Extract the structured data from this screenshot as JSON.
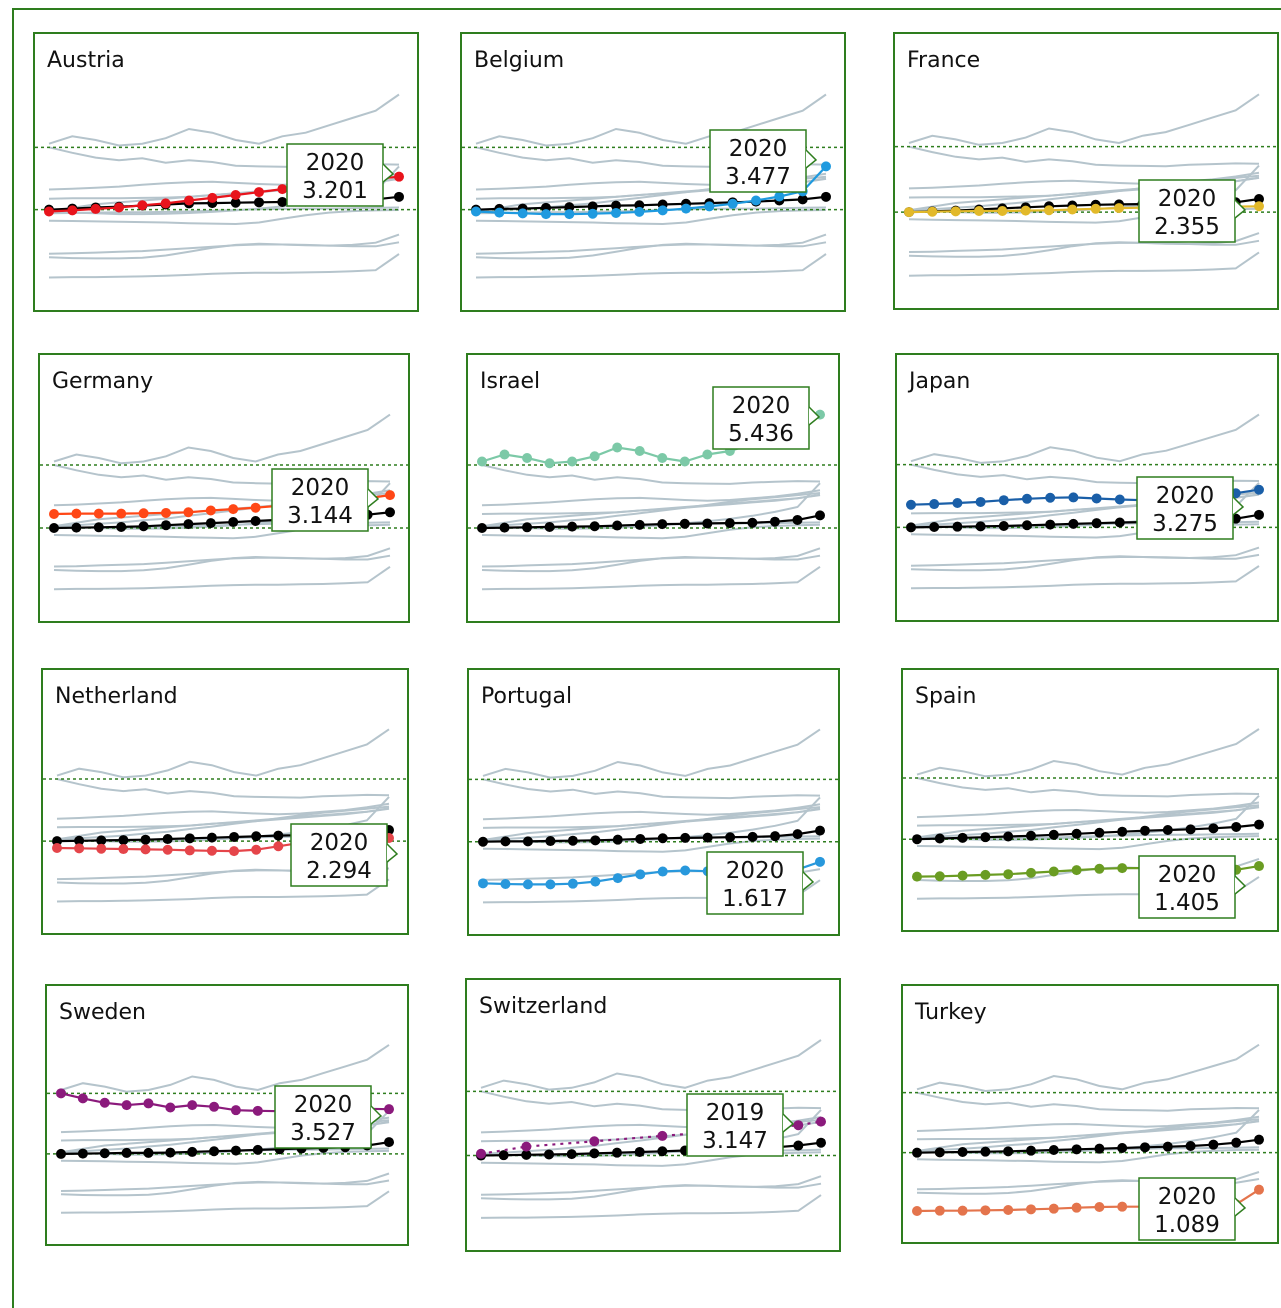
{
  "colors": {
    "frame": "#2e7d1e",
    "reference_line": "#2e7d1e",
    "background_lines": "#b5c4cc",
    "black_series": "#000000"
  },
  "chart_data": [
    {
      "type": "line",
      "title": "Austria",
      "color": "#e8141c",
      "series": [
        {
          "values": [
            2.25,
            2.28,
            2.32,
            2.36,
            2.42,
            2.47,
            2.55,
            2.62,
            2.7,
            2.78,
            2.86,
            2.95,
            3.02,
            3.08,
            3.14,
            3.2
          ]
        },
        {
          "values": [
            2.3,
            2.33,
            2.36,
            2.38,
            2.41,
            2.44,
            2.47,
            2.48,
            2.49,
            2.5,
            2.51,
            2.52,
            2.54,
            2.56,
            2.58,
            2.65
          ]
        }
      ],
      "callout": {
        "year": "2020",
        "value": "3.201"
      }
    },
    {
      "type": "line",
      "title": "Belgium",
      "color": "#1f9adf",
      "series": [
        {
          "values": [
            2.25,
            2.22,
            2.2,
            2.18,
            2.18,
            2.19,
            2.21,
            2.24,
            2.28,
            2.33,
            2.39,
            2.46,
            2.55,
            2.66,
            2.8,
            3.48
          ]
        },
        {
          "values": [
            2.3,
            2.32,
            2.33,
            2.35,
            2.37,
            2.39,
            2.41,
            2.42,
            2.44,
            2.46,
            2.48,
            2.5,
            2.52,
            2.55,
            2.58,
            2.65
          ]
        }
      ],
      "callout": {
        "year": "2020",
        "value": "3.477"
      }
    },
    {
      "type": "line",
      "title": "France",
      "color": "#e2b92a",
      "series": [
        {
          "values": [
            2.2,
            2.21,
            2.22,
            2.23,
            2.23,
            2.24,
            2.25,
            2.27,
            2.29,
            2.31,
            2.32,
            2.33,
            2.33,
            2.34,
            2.35,
            2.36
          ]
        },
        {
          "values": [
            2.2,
            2.22,
            2.24,
            2.27,
            2.3,
            2.33,
            2.36,
            2.38,
            2.4,
            2.41,
            2.42,
            2.43,
            2.44,
            2.45,
            2.47,
            2.56
          ]
        }
      ],
      "callout": {
        "year": "2020",
        "value": "2.355"
      }
    },
    {
      "type": "line",
      "title": "Germany",
      "color": "#ff4716",
      "series": [
        {
          "values": [
            2.6,
            2.61,
            2.61,
            2.61,
            2.62,
            2.63,
            2.65,
            2.7,
            2.74,
            2.78,
            2.83,
            2.88,
            2.93,
            2.98,
            3.05,
            3.14
          ]
        },
        {
          "values": [
            2.2,
            2.21,
            2.22,
            2.23,
            2.25,
            2.28,
            2.31,
            2.34,
            2.37,
            2.4,
            2.43,
            2.46,
            2.49,
            2.53,
            2.58,
            2.65
          ]
        }
      ],
      "callout": {
        "year": "2020",
        "value": "3.144"
      }
    },
    {
      "type": "line",
      "title": "Israel",
      "color": "#7cc9a7",
      "series": [
        {
          "values": [
            4.1,
            4.3,
            4.2,
            4.05,
            4.1,
            4.25,
            4.5,
            4.4,
            4.2,
            4.1,
            4.3,
            4.4,
            4.6,
            4.8,
            5.0,
            5.44
          ]
        },
        {
          "values": [
            2.2,
            2.21,
            2.22,
            2.23,
            2.24,
            2.25,
            2.27,
            2.29,
            2.31,
            2.32,
            2.33,
            2.34,
            2.35,
            2.38,
            2.43,
            2.56
          ]
        }
      ],
      "callout": {
        "year": "2020",
        "value": "5.436"
      }
    },
    {
      "type": "line",
      "title": "Japan",
      "color": "#1a5fa8",
      "series": [
        {
          "values": [
            2.85,
            2.87,
            2.9,
            2.93,
            2.98,
            3.02,
            3.05,
            3.06,
            3.03,
            3.0,
            2.98,
            3.0,
            3.05,
            3.1,
            3.18,
            3.28
          ]
        },
        {
          "values": [
            2.2,
            2.21,
            2.22,
            2.23,
            2.24,
            2.26,
            2.28,
            2.3,
            2.32,
            2.34,
            2.35,
            2.36,
            2.38,
            2.4,
            2.45,
            2.56
          ]
        }
      ],
      "callout": {
        "year": "2020",
        "value": "3.275"
      }
    },
    {
      "type": "line",
      "title": "Netherland",
      "color": "#e5454a",
      "series": [
        {
          "values": [
            2.0,
            1.99,
            1.98,
            1.97,
            1.96,
            1.95,
            1.93,
            1.92,
            1.91,
            1.95,
            2.05,
            2.15,
            2.22,
            2.26,
            2.28,
            2.29
          ]
        },
        {
          "values": [
            2.2,
            2.21,
            2.22,
            2.23,
            2.24,
            2.26,
            2.28,
            2.3,
            2.32,
            2.34,
            2.36,
            2.37,
            2.38,
            2.4,
            2.45,
            2.52
          ]
        }
      ],
      "callout": {
        "year": "2020",
        "value": "2.294"
      }
    },
    {
      "type": "line",
      "title": "Portugal",
      "color": "#2898dc",
      "series": [
        {
          "values": [
            1.0,
            0.98,
            0.97,
            0.97,
            0.99,
            1.05,
            1.15,
            1.26,
            1.34,
            1.37,
            1.35,
            1.33,
            1.32,
            1.34,
            1.4,
            1.62
          ]
        },
        {
          "values": [
            2.2,
            2.21,
            2.21,
            2.22,
            2.23,
            2.24,
            2.26,
            2.28,
            2.3,
            2.31,
            2.32,
            2.33,
            2.34,
            2.36,
            2.42,
            2.52
          ]
        }
      ],
      "callout": {
        "year": "2020",
        "value": "1.617"
      }
    },
    {
      "type": "line",
      "title": "Spain",
      "color": "#6a9c22",
      "series": [
        {
          "values": [
            1.1,
            1.11,
            1.13,
            1.15,
            1.17,
            1.21,
            1.25,
            1.29,
            1.33,
            1.35,
            1.35,
            1.34,
            1.32,
            1.3,
            1.3,
            1.41
          ]
        },
        {
          "values": [
            2.2,
            2.22,
            2.24,
            2.26,
            2.28,
            2.3,
            2.33,
            2.36,
            2.39,
            2.42,
            2.45,
            2.47,
            2.49,
            2.52,
            2.56,
            2.63
          ]
        }
      ],
      "callout": {
        "year": "2020",
        "value": "1.405"
      }
    },
    {
      "type": "line",
      "title": "Sweden",
      "color": "#8b1a7c",
      "series": [
        {
          "values": [
            4.0,
            3.85,
            3.72,
            3.65,
            3.7,
            3.58,
            3.65,
            3.6,
            3.5,
            3.48,
            3.47,
            3.46,
            3.5,
            3.52,
            3.54,
            3.53
          ]
        },
        {
          "values": [
            2.2,
            2.21,
            2.22,
            2.23,
            2.23,
            2.24,
            2.26,
            2.28,
            2.3,
            2.32,
            2.34,
            2.36,
            2.38,
            2.4,
            2.45,
            2.55
          ]
        }
      ],
      "callout": {
        "year": "2020",
        "value": "3.527"
      }
    },
    {
      "type": "line",
      "title": "Switzerland",
      "color": "#8b1a7c",
      "dotted": true,
      "series": [
        {
          "values": [
            2.25,
            null,
            2.45,
            null,
            null,
            2.6,
            null,
            null,
            2.75,
            null,
            null,
            2.9,
            null,
            null,
            3.05,
            3.15
          ]
        },
        {
          "values": [
            2.2,
            2.21,
            2.22,
            2.23,
            2.24,
            2.26,
            2.28,
            2.3,
            2.32,
            2.34,
            2.36,
            2.38,
            2.4,
            2.43,
            2.48,
            2.56
          ]
        }
      ],
      "callout": {
        "year": "2019",
        "value": "3.147"
      }
    },
    {
      "type": "line",
      "title": "Turkey",
      "color": "#e4744c",
      "series": [
        {
          "values": [
            0.45,
            0.46,
            0.46,
            0.47,
            0.48,
            0.5,
            0.52,
            0.55,
            0.57,
            0.58,
            0.58,
            0.59,
            0.6,
            0.62,
            0.65,
            1.09
          ]
        },
        {
          "values": [
            2.2,
            2.21,
            2.22,
            2.23,
            2.24,
            2.26,
            2.28,
            2.3,
            2.32,
            2.34,
            2.36,
            2.38,
            2.4,
            2.44,
            2.5,
            2.59
          ]
        }
      ],
      "callout": {
        "year": "2020",
        "value": "1.089"
      }
    }
  ]
}
